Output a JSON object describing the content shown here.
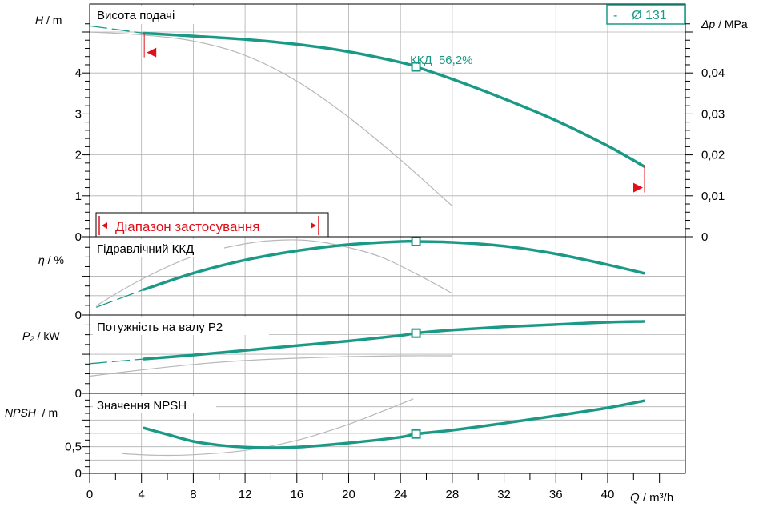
{
  "colors": {
    "curve": "#1a9a86",
    "reference": "#b8b8b8",
    "grid": "#b0b0b0",
    "range": "#e0101a",
    "axis": "#000000"
  },
  "diameter_label": "-    Ø 131",
  "application_range_label": "Діапазон застосування",
  "chart_data": [
    {
      "type": "line",
      "title": "Висота подачі",
      "ylabel": "H / m",
      "ylabel_var": "H",
      "ylabel_unit": " / m",
      "y2label": "Δp / MPa",
      "y2label_var": "Δp",
      "y2label_unit": " / MPa",
      "ylim": [
        0,
        5.4
      ],
      "yticks": [
        "0",
        "1",
        "2",
        "3",
        "4"
      ],
      "y2ticks": [
        "0",
        "0,01",
        "0,02",
        "0,03",
        "0,04"
      ],
      "annotation": "ККД  56,2%",
      "operating_point": {
        "x": 25.2,
        "y": 4.15
      },
      "main_curve": {
        "x": [
          4.2,
          8,
          12,
          16,
          20,
          24,
          25.2,
          28,
          32,
          36,
          40,
          42.8
        ],
        "y": [
          4.97,
          4.9,
          4.82,
          4.7,
          4.52,
          4.26,
          4.15,
          3.85,
          3.37,
          2.84,
          2.22,
          1.72
        ]
      },
      "dashed_extension": {
        "x": [
          0,
          4.2
        ],
        "y": [
          5.15,
          4.97
        ]
      },
      "reference_curve": {
        "x": [
          0,
          4,
          8,
          12,
          16,
          20,
          24,
          28
        ],
        "y": [
          5.0,
          4.93,
          4.78,
          4.43,
          3.8,
          2.92,
          1.88,
          0.75
        ]
      },
      "range_markers": [
        {
          "x": 4.4,
          "y": 4.5
        },
        {
          "x": 42.6,
          "y": 1.2
        }
      ]
    },
    {
      "type": "line",
      "title": "Гідравлічний ККД",
      "ylabel": "η / %",
      "ylabel_var": "η",
      "ylabel_unit": " / %",
      "ylim": [
        0,
        100
      ],
      "yticks": [
        "0"
      ],
      "operating_point": {
        "x": 25.2,
        "y": 95
      },
      "main_curve": {
        "x": [
          4.2,
          8,
          12,
          16,
          20,
          24,
          25.2,
          28,
          32,
          36,
          40,
          42.8
        ],
        "y": [
          33,
          54,
          71,
          83,
          91,
          95,
          95,
          94,
          89,
          79,
          65,
          54
        ]
      },
      "dashed_extension": {
        "x": [
          0.5,
          4.2
        ],
        "y": [
          10,
          33
        ]
      },
      "reference_curve": {
        "x": [
          0.5,
          4,
          8,
          12,
          15,
          18,
          22,
          25,
          28
        ],
        "y": [
          12,
          46,
          76,
          92,
          97,
          94,
          78,
          55,
          28
        ]
      }
    },
    {
      "type": "line",
      "title": "Потужність на валу P2",
      "ylabel": "P₂ / kW",
      "ylabel_var": "P₂",
      "ylabel_unit": " / kW",
      "ylim": [
        0,
        100
      ],
      "yticks": [
        "0"
      ],
      "operating_point": {
        "x": 25.2,
        "y": 77
      },
      "main_curve": {
        "x": [
          4.2,
          8,
          12,
          16,
          20,
          24,
          25.2,
          28,
          32,
          36,
          40,
          42.8
        ],
        "y": [
          44,
          49,
          55,
          61,
          67,
          74,
          77,
          81,
          85,
          88,
          91,
          92
        ]
      },
      "dashed_extension": {
        "x": [
          0,
          4.2
        ],
        "y": [
          38,
          44
        ]
      },
      "reference_curve": {
        "x": [
          0,
          4,
          8,
          12,
          16,
          20,
          24,
          28
        ],
        "y": [
          22,
          30,
          37,
          42,
          45,
          47,
          48,
          48
        ]
      }
    },
    {
      "type": "line",
      "title": "Значення NPSH",
      "ylabel": "NPSH  / m",
      "ylabel_var": "NPSH",
      "ylabel_unit": "  / m",
      "ylim": [
        0,
        1.5
      ],
      "yticks": [
        "0",
        "0,5"
      ],
      "operating_point": {
        "x": 25.2,
        "y": 0.74
      },
      "main_curve": {
        "x": [
          4.2,
          6,
          8,
          10,
          12,
          14,
          16,
          20,
          24,
          25.2,
          28,
          32,
          36,
          40,
          42.8
        ],
        "y": [
          0.85,
          0.73,
          0.6,
          0.53,
          0.49,
          0.48,
          0.49,
          0.57,
          0.68,
          0.74,
          0.81,
          0.94,
          1.08,
          1.23,
          1.36
        ]
      },
      "reference_curve": {
        "x": [
          2.5,
          5,
          8,
          12,
          16,
          20,
          24,
          25
        ],
        "y": [
          0.37,
          0.34,
          0.35,
          0.43,
          0.62,
          0.92,
          1.3,
          1.4
        ]
      }
    }
  ],
  "x_axis": {
    "label": "Q / m³/h",
    "label_var": "Q",
    "label_unit": " / m³/h",
    "xlim": [
      0,
      46
    ],
    "ticks": [
      "0",
      "4",
      "8",
      "12",
      "16",
      "20",
      "24",
      "28",
      "32",
      "36",
      "40"
    ]
  }
}
